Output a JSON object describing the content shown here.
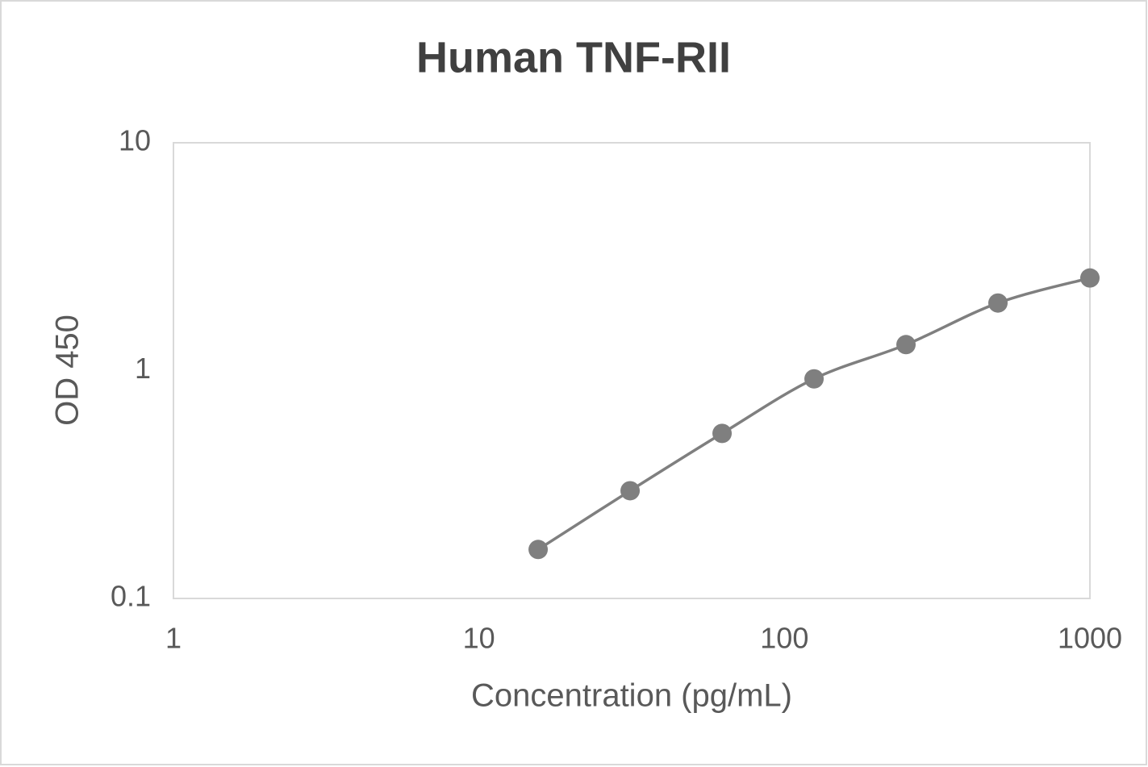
{
  "chart_data": {
    "type": "scatter",
    "title": "Human TNF-RII",
    "x_label": "Concentration (pg/mL)",
    "y_label": "OD 450",
    "x": [
      15.625,
      31.25,
      62.5,
      125,
      250,
      500,
      1000
    ],
    "series": [
      {
        "color": "#7f7f7f",
        "values": [
          0.164,
          0.297,
          0.53,
          0.92,
          1.3,
          1.98,
          2.55
        ]
      }
    ],
    "xlim": [
      1,
      1000
    ],
    "ylim": [
      0.1,
      10
    ],
    "xticks": [
      1,
      10,
      100,
      1000
    ],
    "yticks": [
      0.1,
      1,
      10
    ],
    "xscale": "log",
    "yscale": "log",
    "smooth": true,
    "grid": false
  }
}
